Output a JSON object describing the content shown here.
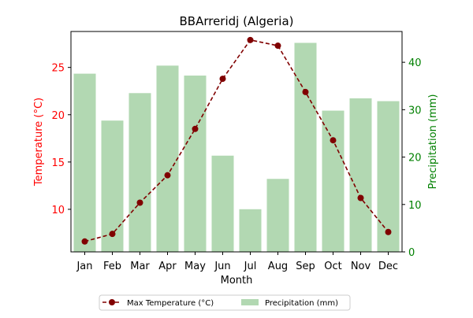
{
  "chart_data": {
    "type": "bar",
    "title": "BBArreridj (Algeria)",
    "xlabel": "Month",
    "ylabel_left": "Temperature (°C)",
    "ylabel_right": "Precipitation (mm)",
    "categories": [
      "Jan",
      "Feb",
      "Mar",
      "Apr",
      "May",
      "Jun",
      "Jul",
      "Aug",
      "Sep",
      "Oct",
      "Nov",
      "Dec"
    ],
    "left_axis": {
      "ylim": [
        5.5,
        28.8
      ],
      "ticks": [
        10,
        15,
        20,
        25
      ],
      "color": "#ff0000"
    },
    "right_axis": {
      "ylim": [
        0,
        46.5
      ],
      "ticks": [
        0,
        10,
        20,
        30,
        40
      ],
      "color": "#008000"
    },
    "series": [
      {
        "name": "Max Temperature (°C)",
        "type": "line",
        "axis": "left",
        "style": "dashed",
        "marker": "circle",
        "color": "#800000",
        "values": [
          6.6,
          7.4,
          10.7,
          13.6,
          18.5,
          23.8,
          27.9,
          27.3,
          22.4,
          17.3,
          11.2,
          7.6
        ]
      },
      {
        "name": "Precipitation (mm)",
        "type": "bar",
        "axis": "right",
        "color": "#b2d8b2",
        "values": [
          37.6,
          27.7,
          33.5,
          39.3,
          37.2,
          20.3,
          9.0,
          15.4,
          44.1,
          29.8,
          32.4,
          31.8
        ]
      }
    ],
    "legend": {
      "placement": "bottom-center",
      "columns": 2
    },
    "grid": false
  }
}
